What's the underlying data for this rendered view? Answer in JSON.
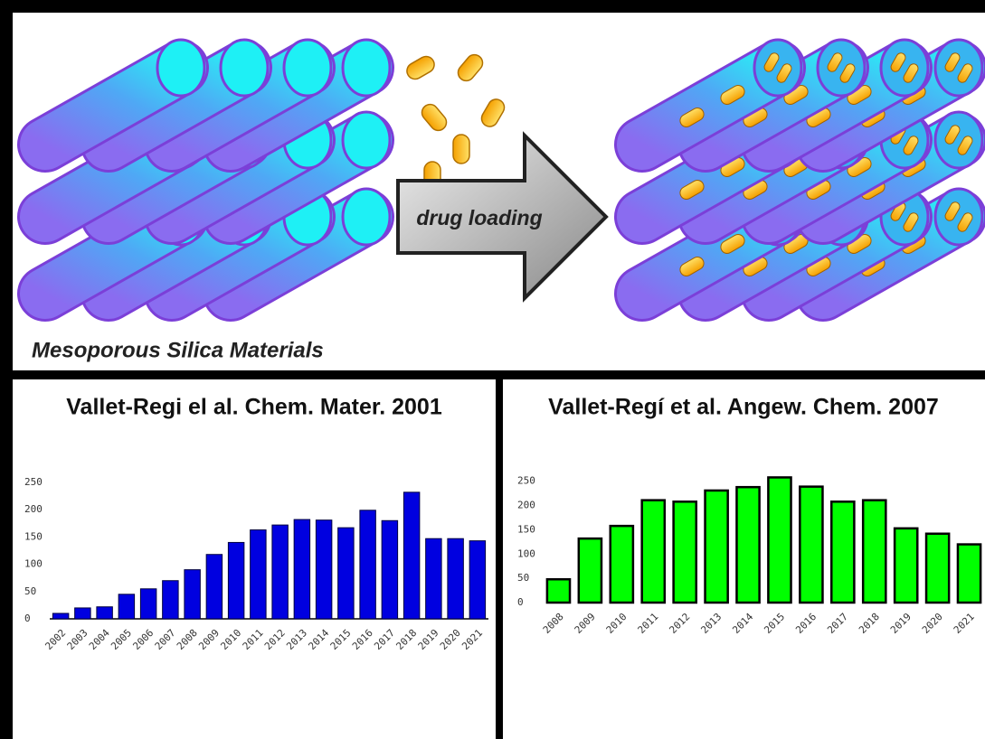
{
  "illustration": {
    "arrow_label": "drug loading",
    "caption": "Mesoporous Silica Materials"
  },
  "chart_data": [
    {
      "type": "bar",
      "title": "Vallet-Regi el al. Chem. Mater. 2001",
      "categories": [
        "2002",
        "2003",
        "2004",
        "2005",
        "2006",
        "2007",
        "2008",
        "2009",
        "2010",
        "2011",
        "2012",
        "2013",
        "2014",
        "2015",
        "2016",
        "2017",
        "2018",
        "2019",
        "2020",
        "2021"
      ],
      "values": [
        10,
        20,
        22,
        45,
        55,
        70,
        90,
        118,
        140,
        163,
        172,
        182,
        181,
        167,
        199,
        180,
        232,
        147,
        147,
        143
      ],
      "color": "#0000e0",
      "ylim": [
        0,
        250
      ],
      "yticks": [
        0,
        50,
        100,
        150,
        200,
        250
      ]
    },
    {
      "type": "bar",
      "title": "Vallet-Regí et al. Angew. Chem. 2007",
      "categories": [
        "2008",
        "2009",
        "2010",
        "2011",
        "2012",
        "2013",
        "2014",
        "2015",
        "2016",
        "2017",
        "2018",
        "2019",
        "2020",
        "2021"
      ],
      "values": [
        48,
        132,
        158,
        211,
        208,
        231,
        238,
        258,
        239,
        208,
        211,
        153,
        142,
        120
      ],
      "color": "#00ff00",
      "ylim": [
        0,
        270
      ],
      "yticks": [
        0,
        50,
        100,
        150,
        200,
        250
      ]
    }
  ]
}
